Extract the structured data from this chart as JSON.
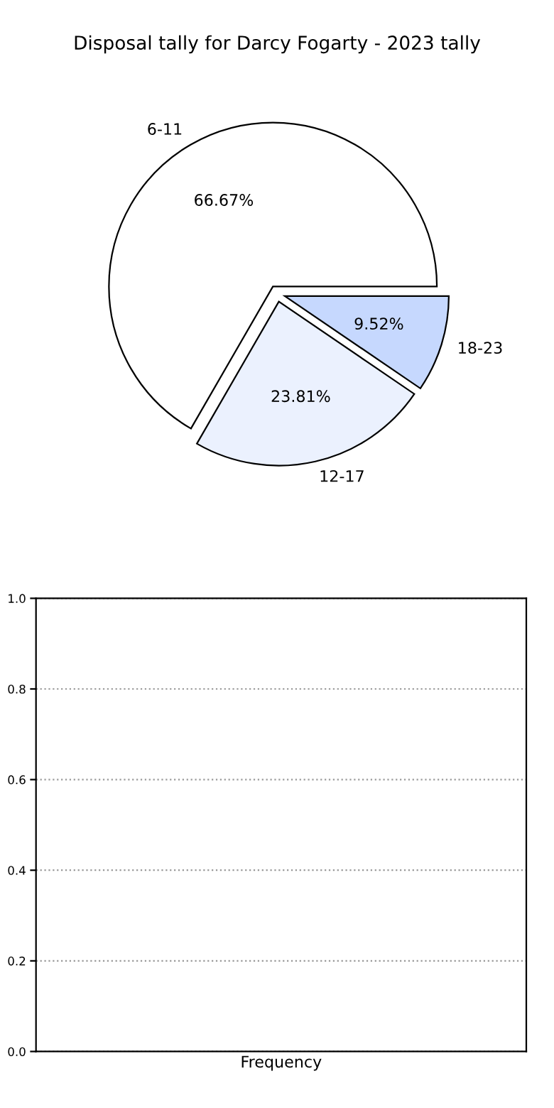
{
  "chart_data": [
    {
      "type": "pie",
      "title": "Disposal tally for Darcy Fogarty - 2023 tally",
      "categories": [
        "6-11",
        "12-17",
        "18-23"
      ],
      "values": [
        66.67,
        23.81,
        9.52
      ],
      "colors": [
        "#ffffff",
        "#ebf1fe",
        "#c6d8fe"
      ],
      "value_labels": [
        "66.67%",
        "23.81%",
        "9.52%"
      ]
    },
    {
      "type": "bar",
      "categories": [
        "Frequency"
      ],
      "values": [
        null
      ],
      "ylim": [
        0,
        1
      ],
      "yticks": [
        {
          "value": 0,
          "label": "0.0"
        },
        {
          "value": 0.2,
          "label": "0.2"
        },
        {
          "value": 0.4,
          "label": "0.4"
        },
        {
          "value": 0.6,
          "label": "0.6"
        },
        {
          "value": 0.8,
          "label": "0.8"
        },
        {
          "value": 1,
          "label": "1.0"
        }
      ],
      "grid": "y"
    }
  ]
}
